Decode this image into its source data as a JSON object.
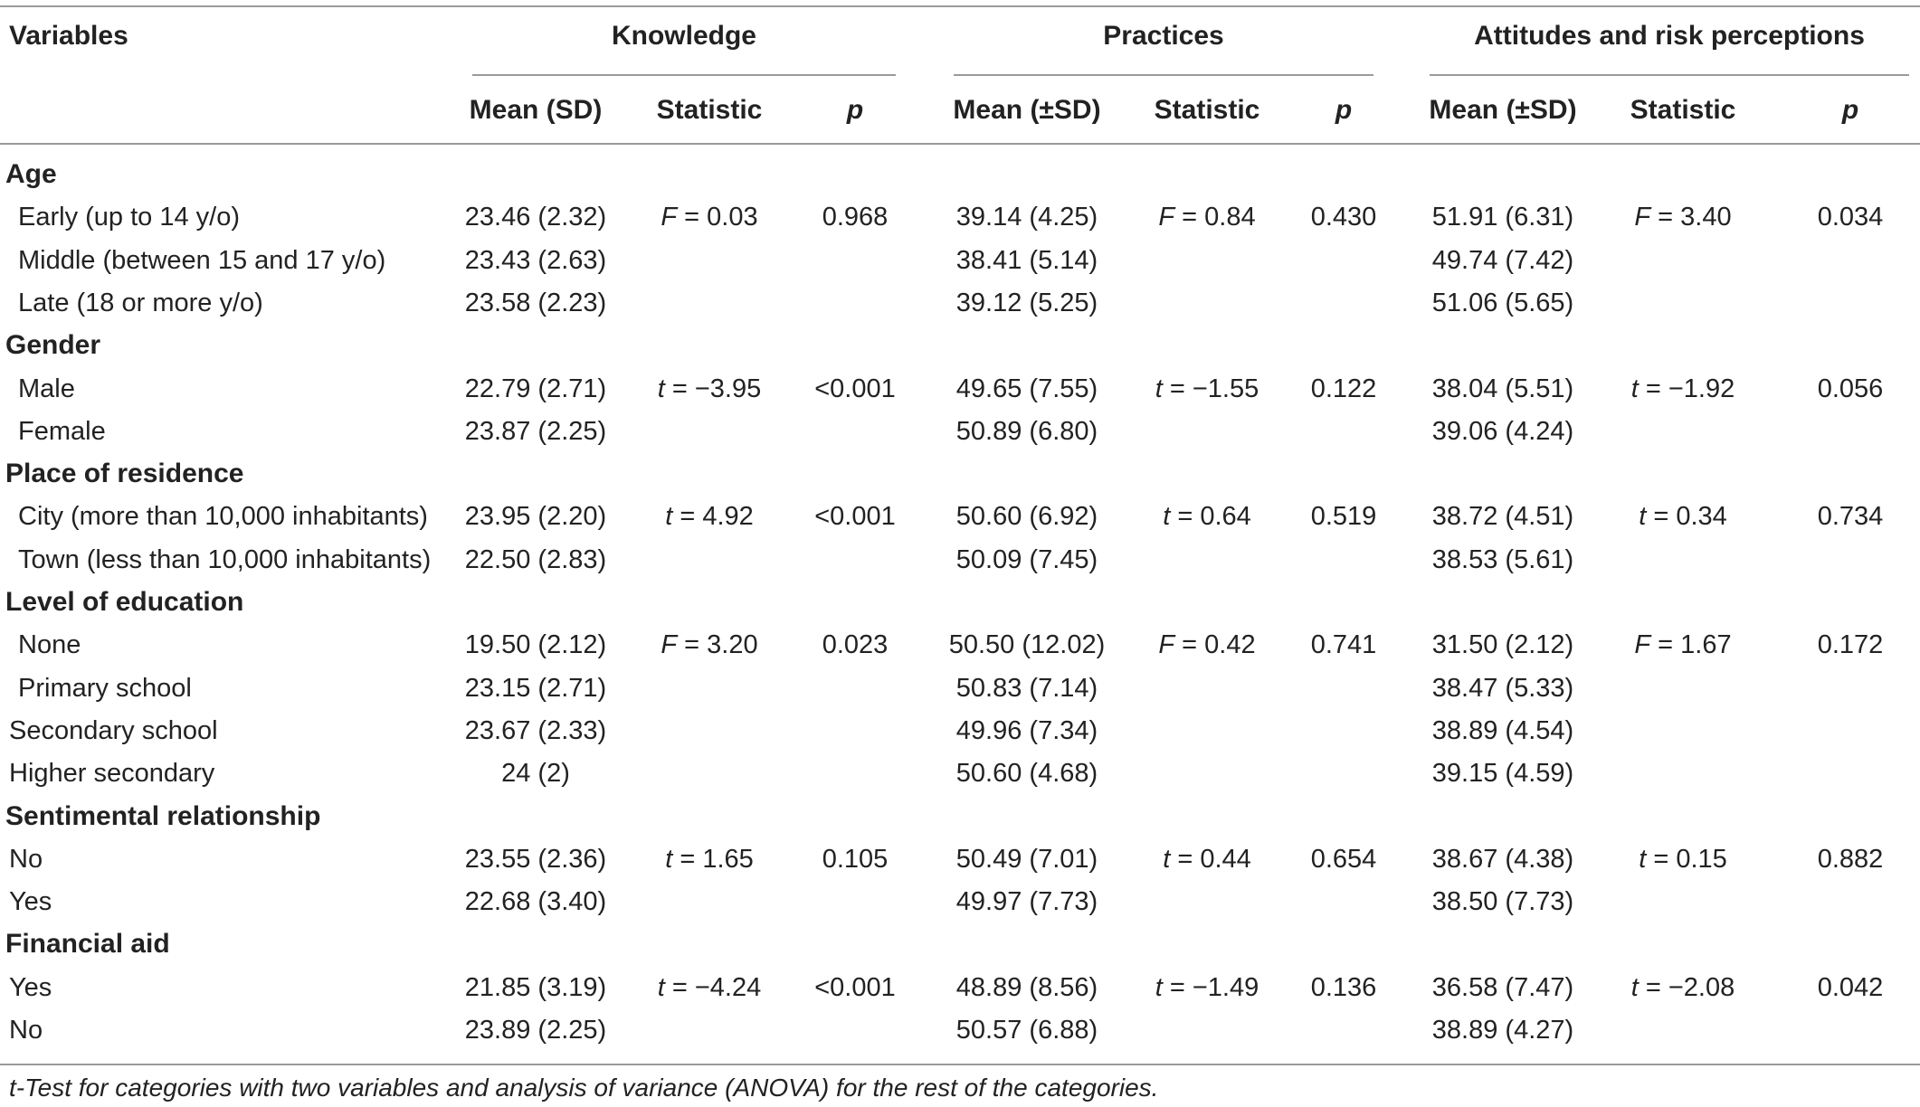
{
  "header": {
    "variables": "Variables",
    "groups": [
      "Knowledge",
      "Practices",
      "Attitudes and risk perceptions"
    ],
    "subcolumns": [
      "Mean (SD)",
      "Statistic",
      "p",
      "Mean (±SD)",
      "Statistic",
      "p",
      "Mean (±SD)",
      "Statistic",
      "p"
    ]
  },
  "rows": [
    {
      "kind": "group",
      "label": "Age"
    },
    {
      "kind": "data",
      "label": "Early (up to 14 y/o)",
      "indent": true,
      "k_mean": "23.46 (2.32)",
      "k_sym": "F",
      "k_val": " = 0.03",
      "k_p": "0.968",
      "p_mean": "39.14 (4.25)",
      "p_sym": "F",
      "p_val": " = 0.84",
      "p_p": "0.430",
      "a_mean": "51.91 (6.31)",
      "a_sym": "F",
      "a_val": " = 3.40",
      "a_p": "0.034"
    },
    {
      "kind": "data",
      "label": "Middle (between 15 and 17 y/o)",
      "indent": true,
      "k_mean": "23.43 (2.63)",
      "p_mean": "38.41 (5.14)",
      "a_mean": "49.74 (7.42)"
    },
    {
      "kind": "data",
      "label": "Late (18 or more y/o)",
      "indent": true,
      "k_mean": "23.58 (2.23)",
      "p_mean": "39.12 (5.25)",
      "a_mean": "51.06 (5.65)"
    },
    {
      "kind": "group",
      "label": "Gender"
    },
    {
      "kind": "data",
      "label": "Male",
      "indent": true,
      "k_mean": "22.79 (2.71)",
      "k_sym": "t",
      "k_val": " = −3.95",
      "k_p": "<0.001",
      "p_mean": "49.65 (7.55)",
      "p_sym": "t",
      "p_val": " = −1.55",
      "p_p": "0.122",
      "a_mean": "38.04 (5.51)",
      "a_sym": "t",
      "a_val": " = −1.92",
      "a_p": "0.056"
    },
    {
      "kind": "data",
      "label": "Female",
      "indent": true,
      "k_mean": "23.87 (2.25)",
      "p_mean": "50.89 (6.80)",
      "a_mean": "39.06 (4.24)"
    },
    {
      "kind": "group",
      "label": "Place of residence"
    },
    {
      "kind": "data",
      "label": "City (more than 10,000 inhabitants)",
      "indent": true,
      "k_mean": "23.95 (2.20)",
      "k_sym": "t",
      "k_val": " = 4.92",
      "k_p": "<0.001",
      "p_mean": "50.60 (6.92)",
      "p_sym": "t",
      "p_val": " = 0.64",
      "p_p": "0.519",
      "a_mean": "38.72 (4.51)",
      "a_sym": "t",
      "a_val": " = 0.34",
      "a_p": "0.734"
    },
    {
      "kind": "data",
      "label": "Town (less than 10,000 inhabitants)",
      "indent": true,
      "k_mean": "22.50 (2.83)",
      "p_mean": "50.09 (7.45)",
      "a_mean": "38.53 (5.61)"
    },
    {
      "kind": "group",
      "label": "Level of education"
    },
    {
      "kind": "data",
      "label": "None",
      "indent": true,
      "k_mean": "19.50 (2.12)",
      "k_sym": "F",
      "k_val": " = 3.20",
      "k_p": "0.023",
      "p_mean": "50.50 (12.02)",
      "p_sym": "F",
      "p_val": " = 0.42",
      "p_p": "0.741",
      "a_mean": "31.50 (2.12)",
      "a_sym": "F",
      "a_val": " = 1.67",
      "a_p": "0.172"
    },
    {
      "kind": "data",
      "label": "Primary school",
      "indent": true,
      "k_mean": "23.15 (2.71)",
      "p_mean": "50.83 (7.14)",
      "a_mean": "38.47 (5.33)"
    },
    {
      "kind": "data",
      "label": "Secondary school",
      "indent": false,
      "k_mean": "23.67 (2.33)",
      "p_mean": "49.96 (7.34)",
      "a_mean": "38.89 (4.54)"
    },
    {
      "kind": "data",
      "label": "Higher secondary",
      "indent": false,
      "k_mean": "24 (2)",
      "p_mean": "50.60 (4.68)",
      "a_mean": "39.15 (4.59)"
    },
    {
      "kind": "group",
      "label": "Sentimental relationship"
    },
    {
      "kind": "data",
      "label": "No",
      "indent": false,
      "k_mean": "23.55 (2.36)",
      "k_sym": "t",
      "k_val": " = 1.65",
      "k_p": "0.105",
      "p_mean": "50.49 (7.01)",
      "p_sym": "t",
      "p_val": " = 0.44",
      "p_p": "0.654",
      "a_mean": "38.67 (4.38)",
      "a_sym": "t",
      "a_val": " = 0.15",
      "a_p": "0.882"
    },
    {
      "kind": "data",
      "label": "Yes",
      "indent": false,
      "k_mean": "22.68 (3.40)",
      "p_mean": "49.97 (7.73)",
      "a_mean": "38.50 (7.73)"
    },
    {
      "kind": "group",
      "label": "Financial aid"
    },
    {
      "kind": "data",
      "label": "Yes",
      "indent": false,
      "k_mean": "21.85 (3.19)",
      "k_sym": "t",
      "k_val": " = −4.24",
      "k_p": "<0.001",
      "p_mean": "48.89 (8.56)",
      "p_sym": "t",
      "p_val": " = −1.49",
      "p_p": "0.136",
      "a_mean": "36.58 (7.47)",
      "a_sym": "t",
      "a_val": " = −2.08",
      "a_p": "0.042"
    },
    {
      "kind": "data",
      "label": "No",
      "indent": false,
      "k_mean": "23.89 (2.25)",
      "p_mean": "50.57 (6.88)",
      "a_mean": "38.89 (4.27)"
    }
  ],
  "footnote": "t-Test for categories with two variables and analysis of variance (ANOVA) for the rest of the categories."
}
